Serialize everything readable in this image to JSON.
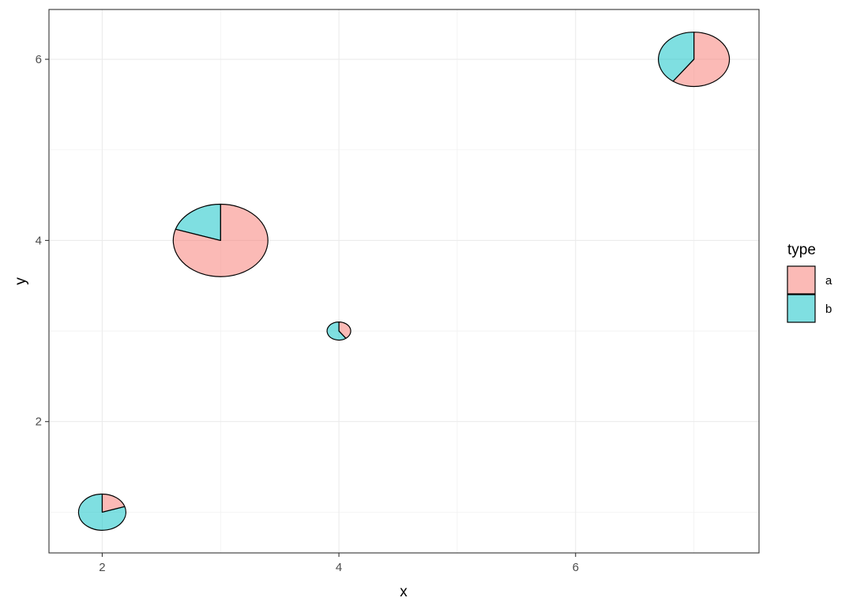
{
  "chart_data": {
    "type": "scatter",
    "subtype": "scatter-pie",
    "xlabel": "x",
    "ylabel": "y",
    "xlim": [
      1.55,
      7.55
    ],
    "ylim": [
      0.55,
      6.55
    ],
    "x_ticks": [
      2,
      4,
      6
    ],
    "y_ticks": [
      2,
      4,
      6
    ],
    "grid": true,
    "legend": {
      "title": "type",
      "position": "right",
      "items": [
        {
          "label": "a",
          "color": "#F8766D"
        },
        {
          "label": "b",
          "color": "#00BFC4"
        }
      ]
    },
    "fill_opacity": 0.5,
    "points": [
      {
        "x": 2,
        "y": 1,
        "r": 0.2,
        "values": {
          "a": 0.2,
          "b": 0.8
        }
      },
      {
        "x": 3,
        "y": 4,
        "r": 0.4,
        "values": {
          "a": 0.8,
          "b": 0.2
        }
      },
      {
        "x": 4,
        "y": 3,
        "r": 0.1,
        "values": {
          "a": 0.4,
          "b": 0.6
        }
      },
      {
        "x": 7,
        "y": 6,
        "r": 0.3,
        "values": {
          "a": 0.6,
          "b": 0.4
        }
      }
    ]
  }
}
